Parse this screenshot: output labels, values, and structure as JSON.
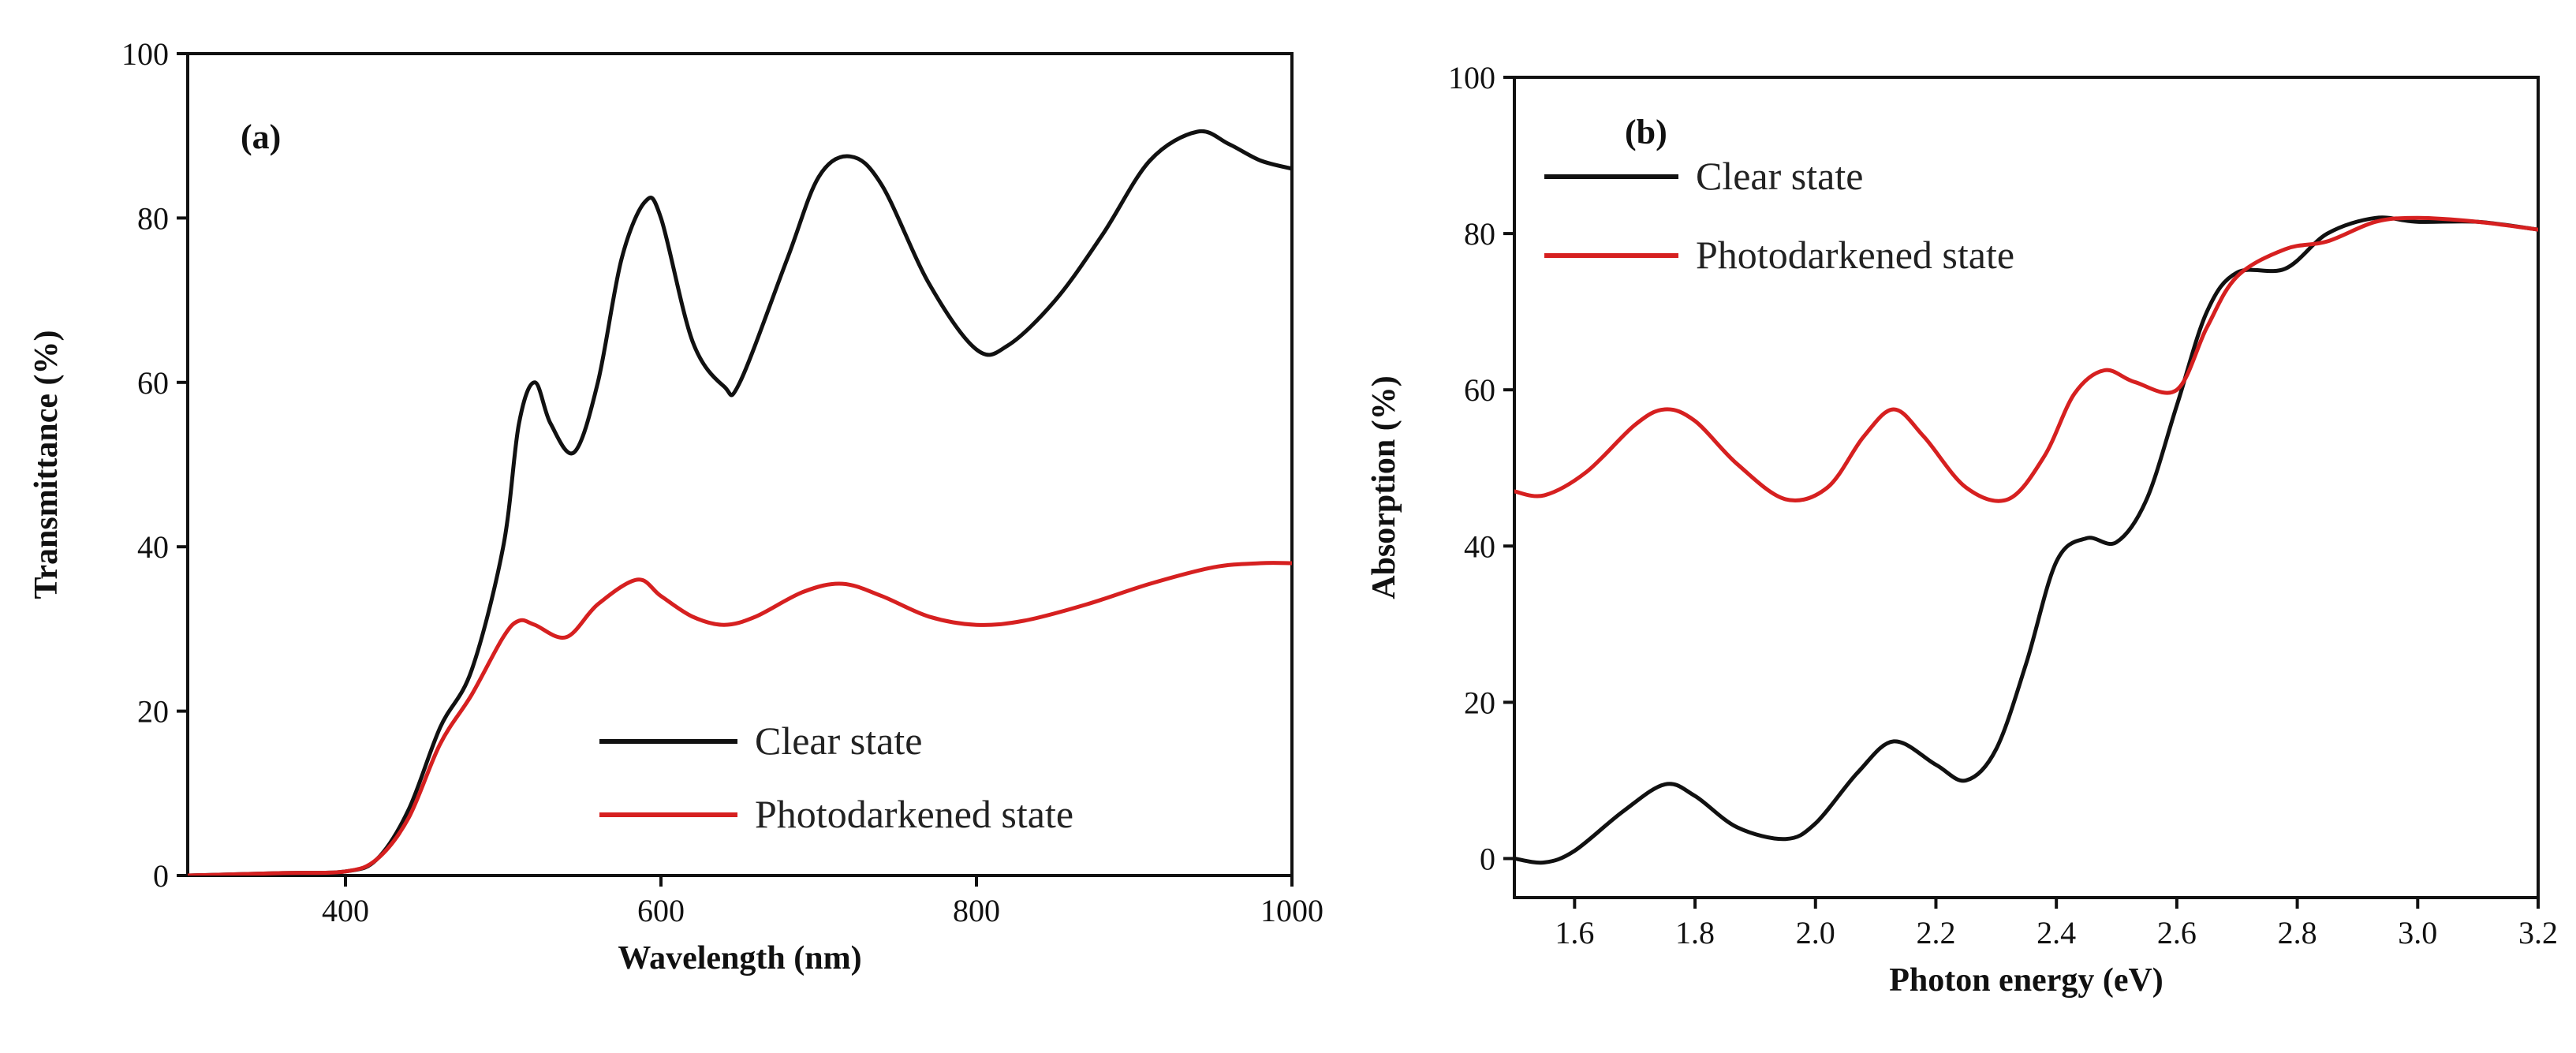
{
  "chart_data": [
    {
      "type": "line",
      "panel_label": "(a)",
      "xlabel": "Wavelength (nm)",
      "ylabel": "Transmittance (%)",
      "xlim": [
        300,
        1000
      ],
      "ylim": [
        0,
        100
      ],
      "xticks": [
        400,
        600,
        800,
        1000
      ],
      "yticks": [
        0,
        20,
        40,
        60,
        80,
        100
      ],
      "legend_position": "lower-right",
      "series": [
        {
          "name": "Clear state",
          "color": "#111111",
          "x": [
            300,
            360,
            400,
            420,
            440,
            460,
            480,
            500,
            510,
            520,
            530,
            545,
            560,
            575,
            590,
            600,
            620,
            640,
            650,
            680,
            700,
            720,
            740,
            770,
            800,
            820,
            850,
            880,
            910,
            940,
            960,
            980,
            1000
          ],
          "y": [
            0,
            0.3,
            0.5,
            2,
            8,
            18,
            25,
            40,
            55,
            60,
            55,
            51.5,
            60,
            75,
            82,
            80,
            65,
            59.5,
            60,
            75,
            85,
            87.5,
            84,
            72,
            64,
            64.5,
            70,
            78,
            87,
            90.5,
            89,
            87,
            86
          ]
        },
        {
          "name": "Photodarkened state",
          "color": "#d62020",
          "x": [
            300,
            360,
            400,
            420,
            440,
            460,
            480,
            500,
            510,
            520,
            540,
            560,
            585,
            600,
            620,
            640,
            660,
            690,
            715,
            740,
            770,
            800,
            830,
            870,
            910,
            950,
            980,
            1000
          ],
          "y": [
            0,
            0.3,
            0.5,
            2,
            7,
            16,
            22,
            29,
            31,
            30.5,
            29,
            33,
            36,
            34,
            31.5,
            30.5,
            31.5,
            34.5,
            35.5,
            34,
            31.5,
            30.5,
            31,
            33,
            35.5,
            37.5,
            38,
            38
          ]
        }
      ]
    },
    {
      "type": "line",
      "panel_label": "(b)",
      "xlabel": "Photon energy (eV)",
      "ylabel": "Absorption (%)",
      "xlim": [
        1.5,
        3.2
      ],
      "ylim": [
        -5,
        100
      ],
      "xticks": [
        "1.6",
        "1.8",
        "2.0",
        "2.2",
        "2.4",
        "2.6",
        "2.8",
        "3.0",
        "3.2"
      ],
      "yticks": [
        0,
        20,
        40,
        60,
        80,
        100
      ],
      "legend_position": "top-left",
      "series": [
        {
          "name": "Clear state",
          "color": "#111111",
          "x": [
            1.5,
            1.55,
            1.6,
            1.68,
            1.75,
            1.8,
            1.87,
            1.95,
            2.0,
            2.07,
            2.13,
            2.2,
            2.25,
            2.3,
            2.35,
            2.4,
            2.45,
            2.5,
            2.55,
            2.6,
            2.65,
            2.7,
            2.78,
            2.85,
            2.93,
            3.0,
            3.1,
            3.2
          ],
          "y": [
            0,
            -0.5,
            1,
            6,
            9.5,
            8,
            4,
            2.5,
            4.5,
            11,
            15,
            12,
            10,
            14,
            25,
            38,
            41,
            40.5,
            46,
            58,
            70,
            75,
            75.5,
            80,
            82,
            81.5,
            81.5,
            80.5
          ]
        },
        {
          "name": "Photodarkened state",
          "color": "#d62020",
          "x": [
            1.5,
            1.55,
            1.62,
            1.7,
            1.75,
            1.8,
            1.87,
            1.95,
            2.02,
            2.08,
            2.13,
            2.18,
            2.25,
            2.32,
            2.38,
            2.43,
            2.48,
            2.53,
            2.6,
            2.65,
            2.7,
            2.78,
            2.85,
            2.93,
            3.0,
            3.1,
            3.2
          ],
          "y": [
            47,
            46.5,
            49.5,
            55.5,
            57.5,
            56,
            50.5,
            46,
            47.5,
            54,
            57.5,
            54,
            47.5,
            46,
            51.5,
            59.5,
            62.5,
            61,
            60,
            68,
            74.5,
            78,
            79,
            81.5,
            82,
            81.5,
            80.5
          ]
        }
      ]
    }
  ]
}
